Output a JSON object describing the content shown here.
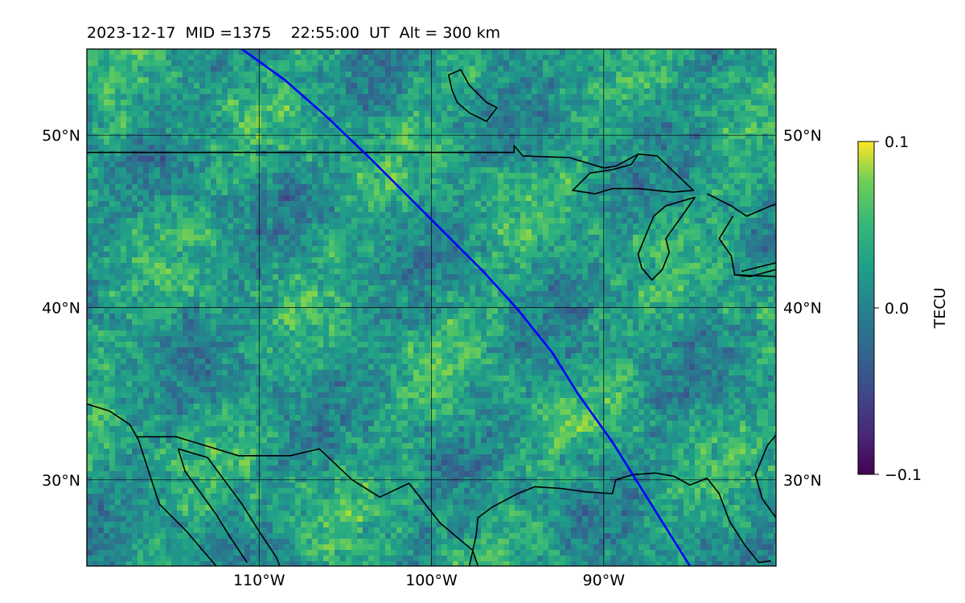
{
  "title": "2023-12-17  MID =1375    22:55:00  UT  Alt = 300 km",
  "map": {
    "lon_range": [
      -120,
      -80
    ],
    "lat_range": [
      25,
      55
    ],
    "lon_ticks": [
      {
        "value": -110,
        "label": "110°W"
      },
      {
        "value": -100,
        "label": "100°W"
      },
      {
        "value": -90,
        "label": "90°W"
      }
    ],
    "lat_ticks": [
      {
        "value": 50,
        "label": "50°N"
      },
      {
        "value": 40,
        "label": "40°N"
      },
      {
        "value": 30,
        "label": "30°N"
      }
    ],
    "grid": true,
    "colormap": "viridis",
    "track_color": "#0000ff",
    "coast_color": "#000000",
    "satellite_track": [
      [
        -111,
        55
      ],
      [
        -108.5,
        53.2
      ],
      [
        -106,
        51
      ],
      [
        -103.5,
        48.6
      ],
      [
        -101.5,
        46.6
      ],
      [
        -99.5,
        44.6
      ],
      [
        -97,
        42.1
      ],
      [
        -95,
        39.9
      ],
      [
        -93,
        37.4
      ],
      [
        -91.5,
        35
      ],
      [
        -89.5,
        32.2
      ],
      [
        -87.5,
        29
      ],
      [
        -86,
        26.6
      ],
      [
        -85,
        25
      ]
    ],
    "coastlines": [
      [
        [
          -120,
          49
        ],
        [
          -95.2,
          49
        ],
        [
          -95.2,
          49.4
        ],
        [
          -94.7,
          48.8
        ],
        [
          -92,
          48.7
        ],
        [
          -90,
          48.1
        ],
        [
          -89.3,
          48.2
        ],
        [
          -88,
          48.9
        ],
        [
          -86.9,
          48.8
        ],
        [
          -84.8,
          46.8
        ],
        [
          -86,
          46.7
        ],
        [
          -88,
          46.9
        ],
        [
          -89.5,
          46.9
        ],
        [
          -90.5,
          46.6
        ],
        [
          -91.8,
          46.8
        ],
        [
          -90.8,
          47.8
        ],
        [
          -89.5,
          48.0
        ],
        [
          -88.4,
          48.3
        ],
        [
          -88,
          48.9
        ]
      ],
      [
        [
          -98.8,
          52.6
        ],
        [
          -99,
          53.5
        ],
        [
          -98.3,
          53.8
        ],
        [
          -97.8,
          52.9
        ],
        [
          -96.8,
          51.9
        ],
        [
          -96.2,
          51.6
        ],
        [
          -96.8,
          50.8
        ],
        [
          -97.8,
          51.3
        ],
        [
          -98.5,
          51.9
        ],
        [
          -98.8,
          52.6
        ]
      ],
      [
        [
          -84.7,
          46.4
        ],
        [
          -86.4,
          45.9
        ],
        [
          -87.1,
          45.3
        ],
        [
          -87.6,
          44.1
        ],
        [
          -88.0,
          43.1
        ],
        [
          -87.8,
          42.3
        ],
        [
          -87.2,
          41.6
        ],
        [
          -86.6,
          42.2
        ],
        [
          -86.2,
          43.2
        ],
        [
          -86.4,
          44.0
        ],
        [
          -85.4,
          45.4
        ],
        [
          -84.7,
          46.4
        ]
      ],
      [
        [
          -84.0,
          46.6
        ],
        [
          -82.6,
          45.9
        ],
        [
          -81.7,
          45.3
        ],
        [
          -80.3,
          45.9
        ],
        [
          -80,
          46.0
        ]
      ],
      [
        [
          -82.5,
          45.3
        ],
        [
          -83.3,
          44.0
        ],
        [
          -82.6,
          43.0
        ],
        [
          -82.4,
          41.9
        ],
        [
          -81.5,
          41.8
        ],
        [
          -80.0,
          42.2
        ]
      ],
      [
        [
          -82.4,
          41.9
        ],
        [
          -80.0,
          41.8
        ]
      ],
      [
        [
          -80.0,
          42.6
        ],
        [
          -82.0,
          42.1
        ]
      ],
      [
        [
          -120,
          34.4
        ],
        [
          -118.7,
          34.0
        ],
        [
          -117.5,
          33.2
        ],
        [
          -117.0,
          32.3
        ],
        [
          -115.8,
          28.6
        ],
        [
          -114.2,
          27.0
        ],
        [
          -112.5,
          25.0
        ]
      ],
      [
        [
          -117.1,
          32.5
        ],
        [
          -114.8,
          32.5
        ],
        [
          -111.2,
          31.4
        ],
        [
          -108.2,
          31.4
        ],
        [
          -106.5,
          31.8
        ],
        [
          -104.6,
          30.0
        ],
        [
          -103,
          29.0
        ],
        [
          -101.3,
          29.8
        ],
        [
          -99.5,
          27.5
        ],
        [
          -97.6,
          25.9
        ],
        [
          -97.3,
          25
        ]
      ],
      [
        [
          -114.7,
          31.8
        ],
        [
          -113.0,
          31.3
        ],
        [
          -111.0,
          28.6
        ],
        [
          -110.0,
          27.0
        ],
        [
          -109.0,
          25.5
        ],
        [
          -108.8,
          25.0
        ]
      ],
      [
        [
          -114.7,
          31.8
        ],
        [
          -114.3,
          30.5
        ],
        [
          -112.5,
          28.0
        ],
        [
          -111.7,
          26.7
        ],
        [
          -110.7,
          25.2
        ]
      ],
      [
        [
          -97.8,
          25
        ],
        [
          -97.4,
          26.8
        ],
        [
          -97.3,
          27.8
        ],
        [
          -96.5,
          28.4
        ],
        [
          -95.0,
          29.2
        ],
        [
          -94.0,
          29.6
        ],
        [
          -92.5,
          29.5
        ],
        [
          -91.0,
          29.3
        ],
        [
          -89.5,
          29.2
        ],
        [
          -89.3,
          30.0
        ],
        [
          -88.3,
          30.3
        ],
        [
          -87.0,
          30.4
        ],
        [
          -85.9,
          30.2
        ],
        [
          -85.0,
          29.7
        ],
        [
          -84.0,
          30.1
        ],
        [
          -83.3,
          29.2
        ],
        [
          -82.7,
          27.6
        ],
        [
          -81.8,
          26.2
        ],
        [
          -81.0,
          25.2
        ],
        [
          -80.3,
          25.3
        ]
      ],
      [
        [
          -80.0,
          27.8
        ],
        [
          -80.8,
          28.9
        ],
        [
          -81.2,
          30.3
        ],
        [
          -80.5,
          32.0
        ],
        [
          -80,
          32.6
        ]
      ]
    ]
  },
  "colorbar": {
    "min": -0.1,
    "max": 0.1,
    "ticks": [
      {
        "value": 0.1,
        "label": "0.1"
      },
      {
        "value": 0.0,
        "label": "0.0"
      },
      {
        "value": -0.1,
        "label": "−0.1"
      }
    ],
    "unit_label": "TECU"
  }
}
